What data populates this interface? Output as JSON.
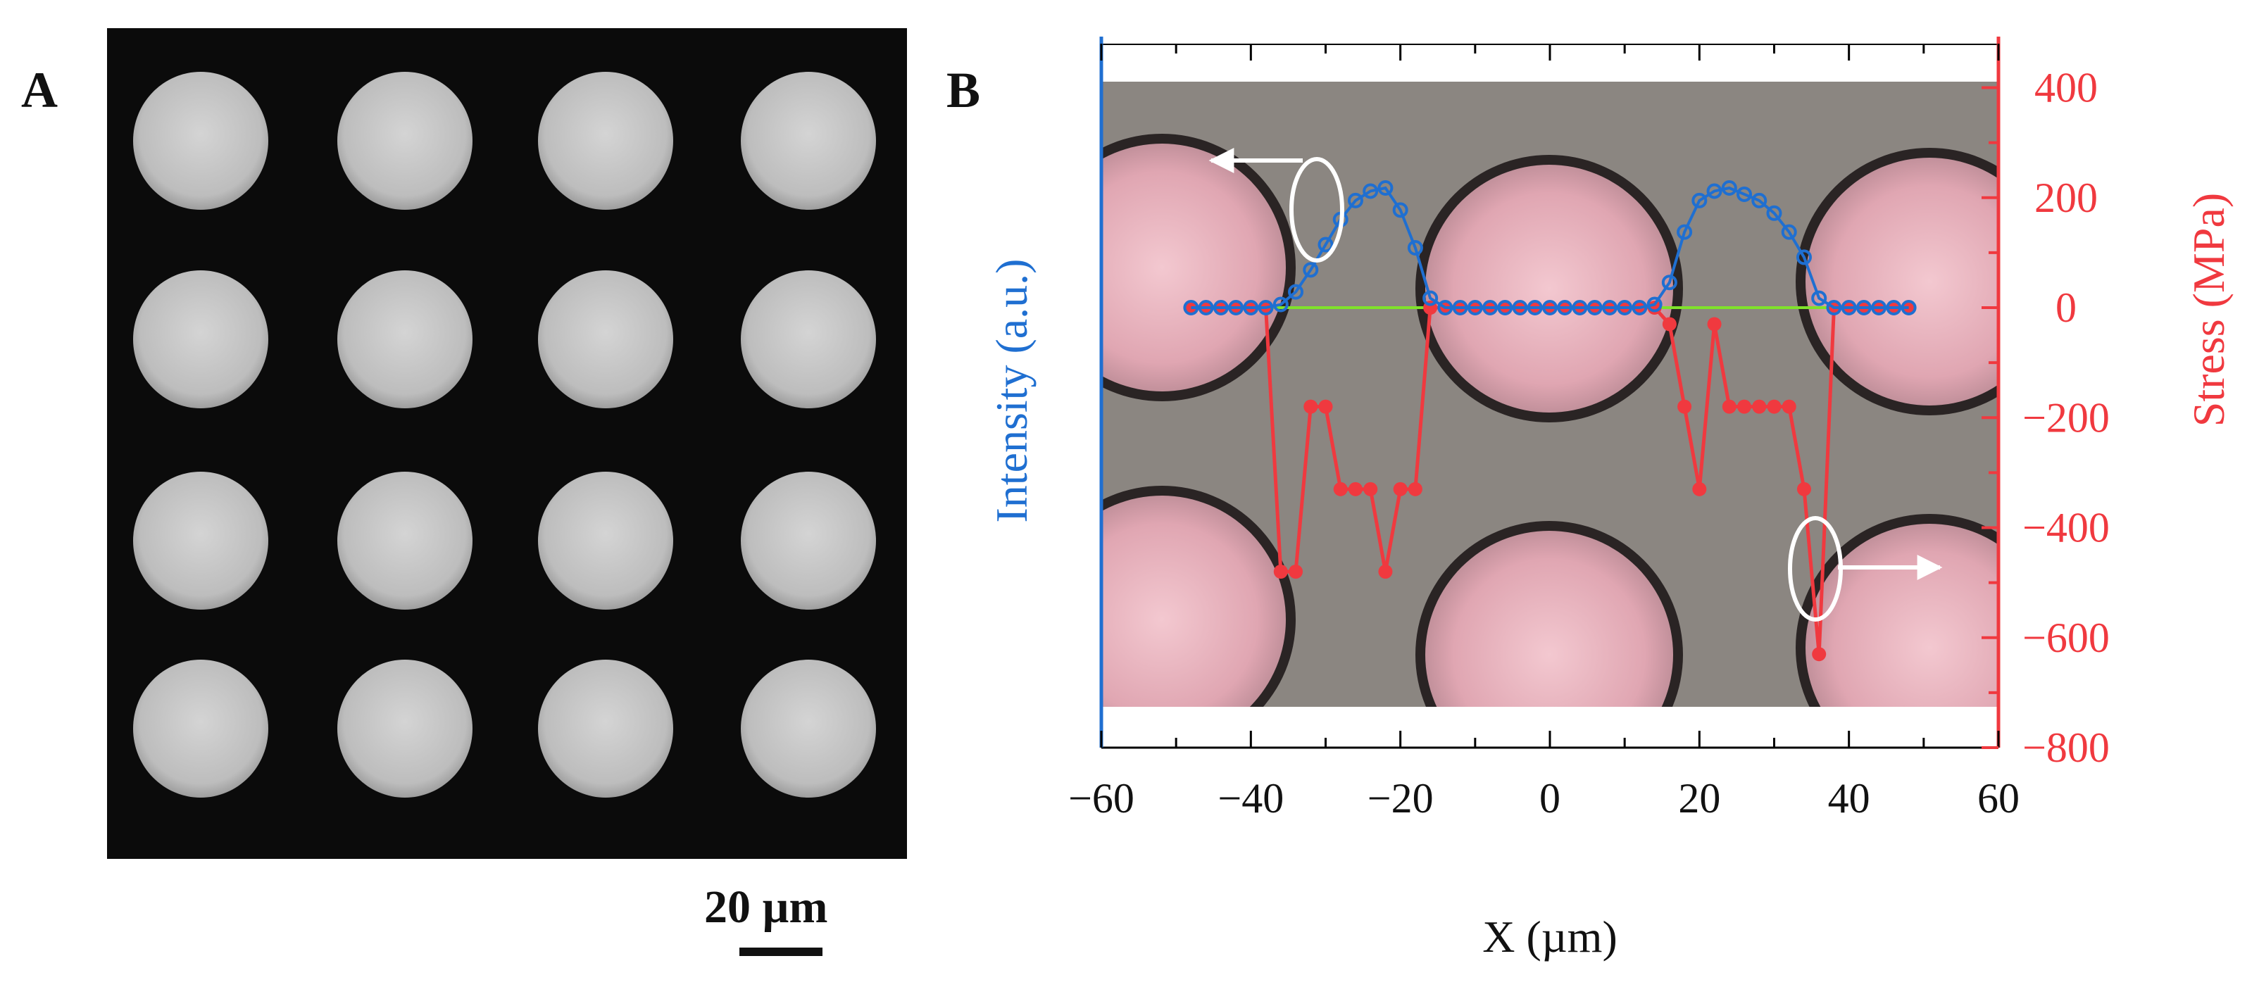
{
  "panels": {
    "a_label": "A",
    "b_label": "B"
  },
  "scale_bar": {
    "label": "20 µm"
  },
  "colors": {
    "intensity": "#1f6fd1",
    "stress": "#f0393f",
    "profile_line": "#7fe22a",
    "sem_background": "#0b0b0b",
    "pillar_sem": "#c9c9c9",
    "optical_background": "#8b8681",
    "pillar_optical": "#e8b4bd"
  },
  "chart_data": {
    "type": "line",
    "xlabel": "X (µm)",
    "ylabel_left": "Intensity (a.u.)",
    "ylabel_right": "Stress (MPa)",
    "xlim": [
      -60,
      60
    ],
    "x_ticks": [
      -60,
      -40,
      -20,
      0,
      20,
      40,
      60
    ],
    "x_tick_labels": [
      "−60",
      "−40",
      "−20",
      "0",
      "20",
      "40",
      "60"
    ],
    "ylim_right": [
      -800,
      480
    ],
    "y_ticks_right": [
      400,
      200,
      0,
      -200,
      -400,
      -600,
      -800
    ],
    "y_tick_labels_right": [
      "400",
      "200",
      "0",
      "−200",
      "−400",
      "−600",
      "−800"
    ],
    "intensity_scale": "arbitrary units, no printed ticks (baseline aligned with 0 MPa)",
    "series": [
      {
        "name": "Intensity",
        "axis": "left",
        "marker": "open-circle",
        "x": [
          -48,
          -46,
          -44,
          -42,
          -40,
          -38,
          -36,
          -34,
          -32,
          -30,
          -28,
          -26,
          -24,
          -22,
          -20,
          -18,
          -16,
          -14,
          -12,
          -10,
          -8,
          -6,
          -4,
          -2,
          0,
          2,
          4,
          6,
          8,
          10,
          12,
          14,
          16,
          18,
          20,
          22,
          24,
          26,
          28,
          30,
          32,
          34,
          36,
          38,
          40,
          42,
          44,
          46,
          48
        ],
        "values": [
          0,
          0,
          0,
          0,
          0,
          0,
          5,
          25,
          60,
          100,
          140,
          170,
          185,
          190,
          155,
          95,
          15,
          0,
          0,
          0,
          0,
          0,
          0,
          0,
          0,
          0,
          0,
          0,
          0,
          0,
          0,
          5,
          40,
          120,
          170,
          185,
          190,
          180,
          170,
          150,
          120,
          80,
          15,
          0,
          0,
          0,
          0,
          0,
          0
        ]
      },
      {
        "name": "Stress",
        "axis": "right",
        "marker": "filled-circle",
        "x": [
          -48,
          -46,
          -44,
          -42,
          -40,
          -38,
          -36,
          -34,
          -32,
          -30,
          -28,
          -26,
          -24,
          -22,
          -20,
          -18,
          -16,
          -14,
          -12,
          -10,
          -8,
          -6,
          -4,
          -2,
          0,
          2,
          4,
          6,
          8,
          10,
          12,
          14,
          16,
          18,
          20,
          22,
          24,
          26,
          28,
          30,
          32,
          34,
          36,
          38,
          40,
          42,
          44,
          46,
          48
        ],
        "values": [
          0,
          0,
          0,
          0,
          0,
          0,
          -480,
          -480,
          -180,
          -180,
          -330,
          -330,
          -330,
          -480,
          -330,
          -330,
          0,
          0,
          0,
          0,
          0,
          0,
          0,
          0,
          0,
          0,
          0,
          0,
          0,
          0,
          0,
          0,
          -30,
          -180,
          -330,
          -30,
          -180,
          -180,
          -180,
          -180,
          -180,
          -330,
          -630,
          0,
          0,
          0,
          0,
          0,
          0
        ]
      }
    ]
  }
}
